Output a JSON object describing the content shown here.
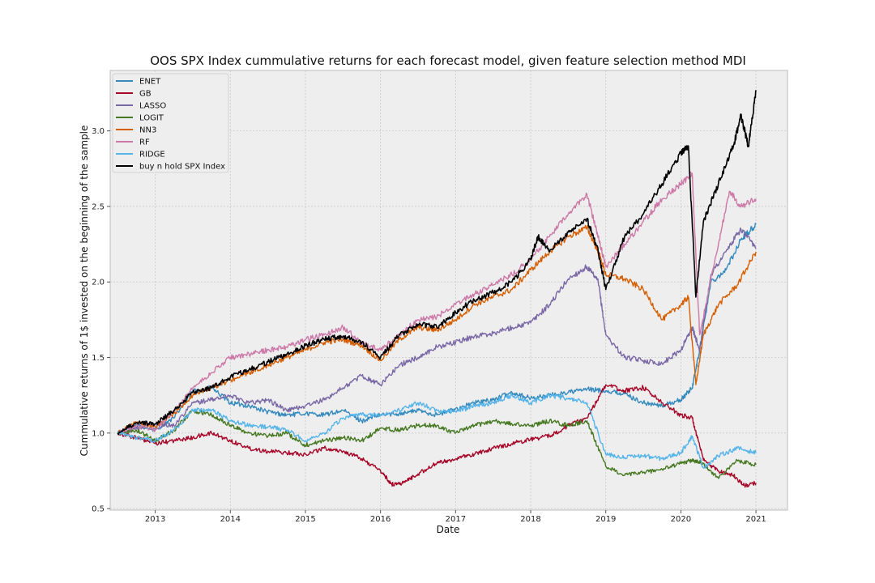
{
  "chart_data": {
    "type": "line",
    "title": "OOS SPX Index cummulative returns for each forecast model, given feature selection method MDI",
    "xlabel": "Date",
    "ylabel": "Cummulative returns of 1$ invested on the beginning of the sample",
    "xlim": [
      2012.4,
      2021.42
    ],
    "ylim": [
      0.49,
      3.4
    ],
    "x_ticks": [
      2013,
      2014,
      2015,
      2016,
      2017,
      2018,
      2019,
      2020,
      2021
    ],
    "x_tick_labels": [
      "2013",
      "2014",
      "2015",
      "2016",
      "2017",
      "2018",
      "2019",
      "2020",
      "2021"
    ],
    "y_ticks": [
      0.5,
      1.0,
      1.5,
      2.0,
      2.5,
      3.0
    ],
    "y_tick_labels": [
      "0.5",
      "1.0",
      "1.5",
      "2.0",
      "2.5",
      "3.0"
    ],
    "grid": true,
    "legend_position": "top-left",
    "series": [
      {
        "name": "ENET",
        "color": "#348abd",
        "x": [
          2012.5,
          2012.75,
          2013.0,
          2013.25,
          2013.5,
          2013.75,
          2014.0,
          2014.25,
          2014.5,
          2014.75,
          2015.0,
          2015.25,
          2015.5,
          2015.75,
          2016.0,
          2016.25,
          2016.5,
          2016.75,
          2017.0,
          2017.25,
          2017.5,
          2017.75,
          2018.0,
          2018.25,
          2018.5,
          2018.75,
          2019.0,
          2019.25,
          2019.5,
          2019.75,
          2020.0,
          2020.15,
          2020.25,
          2020.4,
          2020.6,
          2020.8,
          2021.0
        ],
        "y": [
          1.0,
          1.05,
          1.02,
          1.1,
          1.28,
          1.3,
          1.2,
          1.18,
          1.14,
          1.12,
          1.13,
          1.12,
          1.15,
          1.08,
          1.12,
          1.13,
          1.15,
          1.12,
          1.16,
          1.2,
          1.22,
          1.27,
          1.23,
          1.25,
          1.27,
          1.29,
          1.28,
          1.26,
          1.2,
          1.18,
          1.22,
          1.3,
          1.55,
          2.0,
          2.08,
          2.28,
          2.38
        ]
      },
      {
        "name": "GB",
        "color": "#a60628",
        "x": [
          2012.5,
          2012.75,
          2013.0,
          2013.25,
          2013.5,
          2013.75,
          2014.0,
          2014.25,
          2014.5,
          2014.75,
          2015.0,
          2015.25,
          2015.5,
          2015.75,
          2016.0,
          2016.15,
          2016.3,
          2016.5,
          2016.75,
          2017.0,
          2017.25,
          2017.5,
          2017.75,
          2018.0,
          2018.25,
          2018.5,
          2018.75,
          2019.0,
          2019.25,
          2019.5,
          2019.75,
          2020.0,
          2020.15,
          2020.3,
          2020.5,
          2020.7,
          2020.85,
          2021.0
        ],
        "y": [
          1.0,
          0.97,
          0.93,
          0.95,
          0.97,
          1.0,
          0.95,
          0.9,
          0.88,
          0.87,
          0.86,
          0.9,
          0.88,
          0.83,
          0.75,
          0.66,
          0.67,
          0.73,
          0.8,
          0.83,
          0.86,
          0.9,
          0.93,
          0.96,
          0.98,
          1.05,
          1.1,
          1.32,
          1.28,
          1.3,
          1.2,
          1.12,
          1.1,
          0.82,
          0.75,
          0.72,
          0.65,
          0.67
        ]
      },
      {
        "name": "LASSO",
        "color": "#7a68a6",
        "x": [
          2012.5,
          2012.75,
          2013.0,
          2013.25,
          2013.5,
          2013.75,
          2014.0,
          2014.25,
          2014.5,
          2014.75,
          2015.0,
          2015.25,
          2015.5,
          2015.75,
          2016.0,
          2016.25,
          2016.5,
          2016.75,
          2017.0,
          2017.25,
          2017.5,
          2017.75,
          2018.0,
          2018.25,
          2018.5,
          2018.75,
          2018.9,
          2019.0,
          2019.25,
          2019.5,
          2019.75,
          2020.0,
          2020.15,
          2020.25,
          2020.4,
          2020.6,
          2020.8,
          2021.0
        ],
        "y": [
          1.0,
          1.03,
          1.06,
          1.05,
          1.2,
          1.22,
          1.25,
          1.2,
          1.22,
          1.15,
          1.18,
          1.22,
          1.3,
          1.38,
          1.32,
          1.45,
          1.5,
          1.57,
          1.6,
          1.64,
          1.66,
          1.7,
          1.73,
          1.85,
          2.02,
          2.1,
          2.0,
          1.65,
          1.5,
          1.48,
          1.46,
          1.55,
          1.7,
          1.55,
          2.05,
          2.2,
          2.35,
          2.22
        ]
      },
      {
        "name": "LOGIT",
        "color": "#467821",
        "x": [
          2012.5,
          2012.75,
          2013.0,
          2013.25,
          2013.5,
          2013.75,
          2014.0,
          2014.25,
          2014.5,
          2014.75,
          2015.0,
          2015.25,
          2015.5,
          2015.75,
          2016.0,
          2016.25,
          2016.5,
          2016.75,
          2017.0,
          2017.25,
          2017.5,
          2017.75,
          2018.0,
          2018.25,
          2018.5,
          2018.75,
          2019.0,
          2019.25,
          2019.5,
          2019.75,
          2020.0,
          2020.15,
          2020.3,
          2020.5,
          2020.75,
          2021.0
        ],
        "y": [
          1.0,
          1.02,
          0.95,
          1.02,
          1.15,
          1.12,
          1.05,
          1.0,
          0.98,
          1.0,
          0.92,
          0.95,
          0.97,
          0.95,
          1.03,
          1.02,
          1.05,
          1.05,
          1.0,
          1.05,
          1.08,
          1.06,
          1.05,
          1.08,
          1.05,
          1.08,
          0.78,
          0.72,
          0.74,
          0.76,
          0.8,
          0.82,
          0.8,
          0.7,
          0.82,
          0.79
        ]
      },
      {
        "name": "NN3",
        "color": "#d55e00",
        "x": [
          2012.5,
          2012.75,
          2013.0,
          2013.25,
          2013.5,
          2013.75,
          2014.0,
          2014.25,
          2014.5,
          2014.75,
          2015.0,
          2015.25,
          2015.5,
          2015.75,
          2016.0,
          2016.25,
          2016.5,
          2016.75,
          2017.0,
          2017.25,
          2017.5,
          2017.75,
          2018.0,
          2018.25,
          2018.5,
          2018.75,
          2018.9,
          2019.0,
          2019.25,
          2019.5,
          2019.75,
          2020.0,
          2020.1,
          2020.2,
          2020.3,
          2020.5,
          2020.75,
          2021.0
        ],
        "y": [
          1.0,
          1.07,
          1.04,
          1.13,
          1.25,
          1.3,
          1.35,
          1.4,
          1.45,
          1.5,
          1.55,
          1.6,
          1.62,
          1.58,
          1.48,
          1.62,
          1.7,
          1.68,
          1.75,
          1.85,
          1.9,
          1.95,
          2.08,
          2.2,
          2.3,
          2.36,
          2.2,
          2.05,
          2.02,
          1.95,
          1.75,
          1.85,
          1.9,
          1.32,
          1.65,
          1.85,
          1.98,
          2.2
        ]
      },
      {
        "name": "RF",
        "color": "#cc79a7",
        "x": [
          2012.5,
          2012.75,
          2013.0,
          2013.25,
          2013.5,
          2013.75,
          2014.0,
          2014.25,
          2014.5,
          2014.75,
          2015.0,
          2015.25,
          2015.5,
          2015.75,
          2016.0,
          2016.25,
          2016.5,
          2016.75,
          2017.0,
          2017.25,
          2017.5,
          2017.75,
          2018.0,
          2018.25,
          2018.5,
          2018.75,
          2018.9,
          2019.0,
          2019.25,
          2019.5,
          2019.75,
          2020.0,
          2020.15,
          2020.25,
          2020.5,
          2020.65,
          2020.8,
          2021.0
        ],
        "y": [
          1.0,
          1.05,
          1.02,
          1.15,
          1.3,
          1.4,
          1.5,
          1.52,
          1.55,
          1.57,
          1.62,
          1.65,
          1.7,
          1.6,
          1.55,
          1.65,
          1.75,
          1.77,
          1.85,
          1.92,
          1.98,
          2.05,
          2.15,
          2.3,
          2.45,
          2.58,
          2.3,
          2.1,
          2.25,
          2.4,
          2.55,
          2.65,
          2.72,
          1.65,
          2.25,
          2.6,
          2.5,
          2.55
        ]
      },
      {
        "name": "RIDGE",
        "color": "#56b4e9",
        "x": [
          2012.5,
          2012.75,
          2013.0,
          2013.25,
          2013.5,
          2013.75,
          2014.0,
          2014.25,
          2014.5,
          2014.75,
          2015.0,
          2015.25,
          2015.5,
          2015.75,
          2016.0,
          2016.25,
          2016.5,
          2016.75,
          2017.0,
          2017.25,
          2017.5,
          2017.75,
          2018.0,
          2018.25,
          2018.5,
          2018.75,
          2019.0,
          2019.25,
          2019.5,
          2019.75,
          2020.0,
          2020.15,
          2020.3,
          2020.5,
          2020.75,
          2021.0
        ],
        "y": [
          1.0,
          0.97,
          0.95,
          1.02,
          1.15,
          1.15,
          1.08,
          1.05,
          1.04,
          1.02,
          0.95,
          1.0,
          1.1,
          1.12,
          1.12,
          1.15,
          1.2,
          1.15,
          1.14,
          1.18,
          1.2,
          1.25,
          1.2,
          1.25,
          1.23,
          1.2,
          0.86,
          0.84,
          0.85,
          0.83,
          0.87,
          0.98,
          0.77,
          0.85,
          0.9,
          0.87
        ]
      },
      {
        "name": "buy n hold SPX Index",
        "color": "#000000",
        "x": [
          2012.5,
          2012.75,
          2013.0,
          2013.25,
          2013.5,
          2013.75,
          2014.0,
          2014.25,
          2014.5,
          2014.75,
          2015.0,
          2015.25,
          2015.5,
          2015.75,
          2016.0,
          2016.25,
          2016.5,
          2016.75,
          2017.0,
          2017.25,
          2017.5,
          2017.75,
          2018.0,
          2018.1,
          2018.25,
          2018.5,
          2018.75,
          2018.9,
          2019.0,
          2019.25,
          2019.5,
          2019.75,
          2020.0,
          2020.1,
          2020.2,
          2020.3,
          2020.5,
          2020.7,
          2020.8,
          2020.9,
          2021.0
        ],
        "y": [
          1.0,
          1.07,
          1.06,
          1.15,
          1.27,
          1.3,
          1.37,
          1.42,
          1.47,
          1.52,
          1.58,
          1.62,
          1.64,
          1.6,
          1.5,
          1.65,
          1.72,
          1.7,
          1.8,
          1.88,
          1.93,
          2.0,
          2.15,
          2.3,
          2.2,
          2.33,
          2.42,
          2.2,
          1.95,
          2.3,
          2.45,
          2.65,
          2.85,
          2.9,
          1.9,
          2.4,
          2.65,
          2.9,
          3.1,
          2.9,
          3.27
        ]
      }
    ]
  }
}
